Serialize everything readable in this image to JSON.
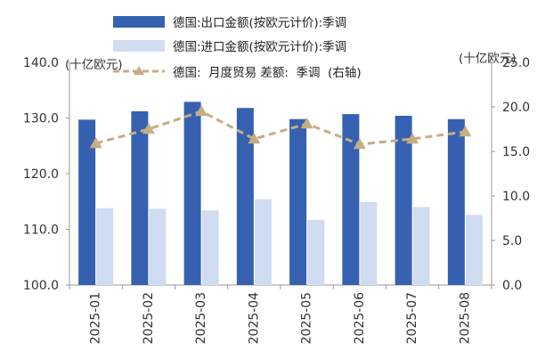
{
  "chart_data": {
    "type": "bar",
    "categories": [
      "2025-01",
      "2025-02",
      "2025-03",
      "2025-04",
      "2025-05",
      "2025-06",
      "2025-07",
      "2025-08"
    ],
    "series": [
      {
        "name": "德国:出口金额(按欧元计价):季调",
        "kind": "bar",
        "axis": "left",
        "color": "#3561b0",
        "values": [
          129.7,
          131.2,
          132.9,
          131.8,
          129.8,
          130.7,
          130.4,
          129.8
        ]
      },
      {
        "name": "德国:进口金额(按欧元计价):季调",
        "kind": "bar",
        "axis": "left",
        "color": "#cfdcf2",
        "values": [
          113.8,
          113.7,
          113.4,
          115.4,
          111.7,
          114.9,
          114.0,
          112.6
        ]
      },
      {
        "name": "德国:  月度贸易 差额:  季调  (右轴)",
        "kind": "line",
        "axis": "right",
        "color": "#c4ae84",
        "values": [
          15.9,
          17.5,
          19.5,
          16.4,
          18.1,
          15.8,
          16.4,
          17.2
        ]
      }
    ],
    "left_axis": {
      "unit_label": "(十亿欧元)",
      "min": 100,
      "max": 140,
      "ticks": [
        "140.0",
        "130.0",
        "120.0",
        "110.0",
        "100.0"
      ]
    },
    "right_axis": {
      "unit_label": "(十亿欧元)",
      "min": 0,
      "max": 25,
      "ticks": [
        "25.0",
        "20.0",
        "15.0",
        "10.0",
        "5.0",
        "0.0"
      ]
    },
    "grid": false,
    "legend_position": "top"
  }
}
